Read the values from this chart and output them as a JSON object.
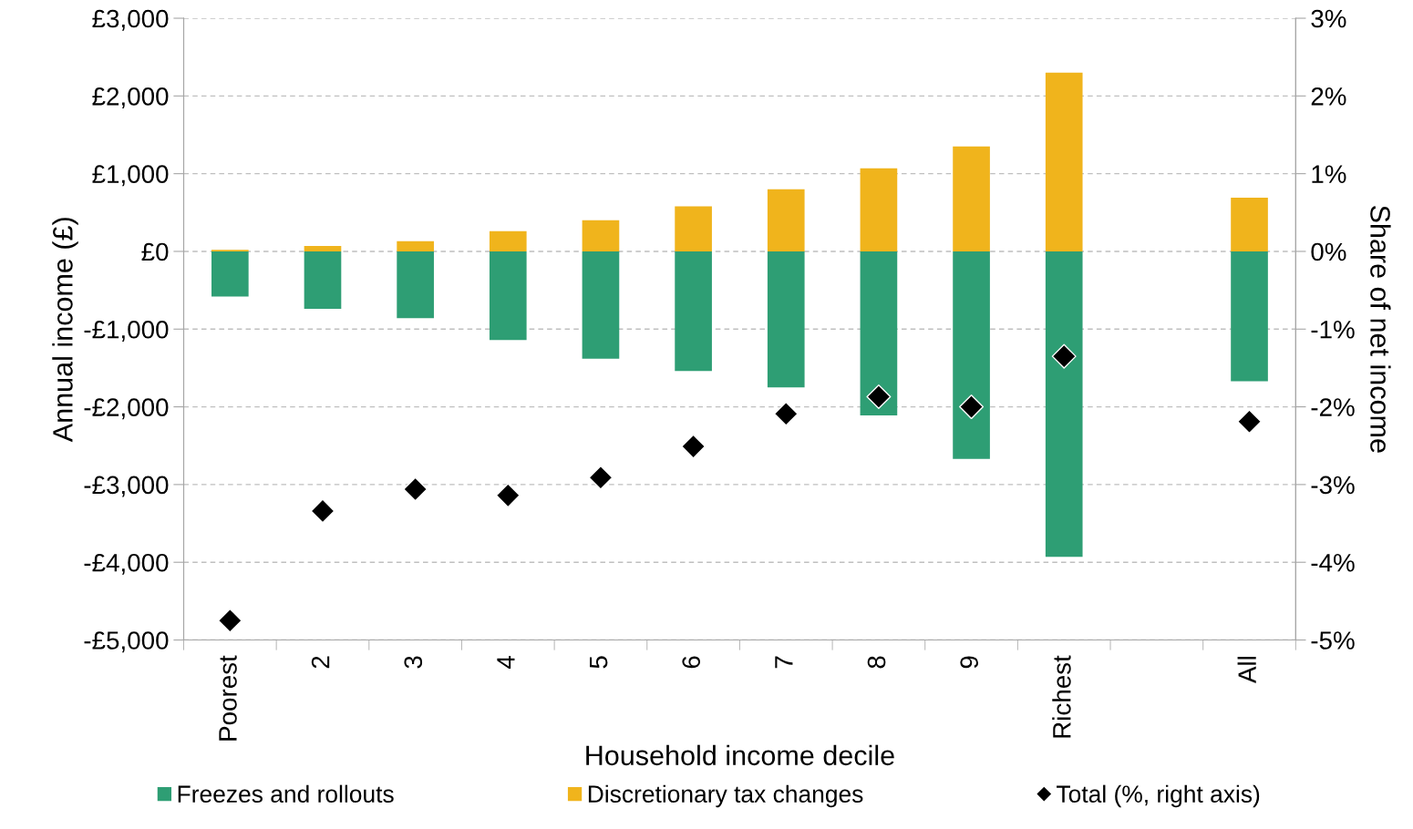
{
  "chart_data": {
    "type": "bar",
    "stacked": true,
    "xlabel": "Household income decile",
    "ylabel": "Annual income (£)",
    "y2label": "Share of net income",
    "categories": [
      "Poorest",
      "2",
      "3",
      "4",
      "5",
      "6",
      "7",
      "8",
      "9",
      "Richest",
      null,
      "All"
    ],
    "series": [
      {
        "name": "Freezes and rollouts",
        "color": "#2e9e74",
        "values": [
          -580,
          -740,
          -860,
          -1140,
          -1380,
          -1540,
          -1750,
          -2110,
          -2670,
          -3930,
          null,
          -1670
        ]
      },
      {
        "name": "Discretionary tax changes",
        "color": "#f0b41c",
        "values": [
          20,
          70,
          130,
          260,
          400,
          580,
          800,
          1070,
          1350,
          2300,
          null,
          690
        ]
      },
      {
        "name": "Total (%, right axis)",
        "type": "scatter",
        "axis": "y2",
        "color": "#000000",
        "marker": "diamond",
        "values": [
          -4.75,
          -3.34,
          -3.06,
          -3.14,
          -2.91,
          -2.51,
          -2.09,
          -1.87,
          -2.0,
          -1.35,
          null,
          -2.19
        ]
      }
    ],
    "ylim": [
      -5000,
      3000
    ],
    "yticks": [
      {
        "value": -5000,
        "label": "-£5,000"
      },
      {
        "value": -4000,
        "label": "-£4,000"
      },
      {
        "value": -3000,
        "label": "-£3,000"
      },
      {
        "value": -2000,
        "label": "-£2,000"
      },
      {
        "value": -1000,
        "label": "-£1,000"
      },
      {
        "value": 0,
        "label": "£0"
      },
      {
        "value": 1000,
        "label": "£1,000"
      },
      {
        "value": 2000,
        "label": "£2,000"
      },
      {
        "value": 3000,
        "label": "£3,000"
      }
    ],
    "y2lim": [
      -5,
      3
    ],
    "y2ticks": [
      {
        "value": -5,
        "label": "-5%"
      },
      {
        "value": -4,
        "label": "-4%"
      },
      {
        "value": -3,
        "label": "-3%"
      },
      {
        "value": -2,
        "label": "-2%"
      },
      {
        "value": -1,
        "label": "-1%"
      },
      {
        "value": 0,
        "label": "0%"
      },
      {
        "value": 1,
        "label": "1%"
      },
      {
        "value": 2,
        "label": "2%"
      },
      {
        "value": 3,
        "label": "3%"
      }
    ],
    "grid": "y",
    "legend": "bottom"
  }
}
